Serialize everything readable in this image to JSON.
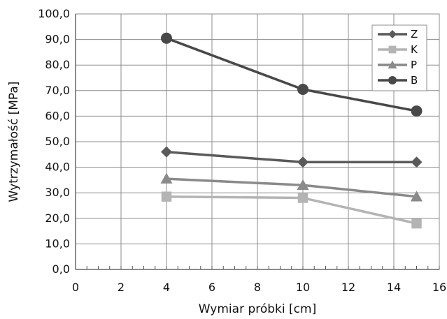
{
  "chart_data": {
    "type": "line",
    "title": "",
    "xlabel": "Wymiar próbki [cm]",
    "ylabel": "Wytrzymałość [MPa]",
    "xlim": [
      0,
      16
    ],
    "ylim": [
      0,
      100
    ],
    "x_ticks": [
      "0",
      "2",
      "4",
      "6",
      "8",
      "10",
      "12",
      "14",
      "16"
    ],
    "y_ticks": [
      "0,0",
      "10,0",
      "20,0",
      "30,0",
      "40,0",
      "50,0",
      "60,0",
      "70,0",
      "80,0",
      "90,0",
      "100,0"
    ],
    "grid": true,
    "legend_position": "top-right",
    "series": [
      {
        "name": "Z",
        "marker": "diamond",
        "color": "#5a5a5a",
        "x": [
          4,
          10,
          15
        ],
        "y": [
          46.0,
          42.0,
          42.0
        ]
      },
      {
        "name": "K",
        "marker": "square",
        "color": "#b4b4b4",
        "x": [
          4,
          10,
          15
        ],
        "y": [
          28.5,
          28.0,
          18.0
        ]
      },
      {
        "name": "P",
        "marker": "triangle",
        "color": "#8a8a8a",
        "x": [
          4,
          10,
          15
        ],
        "y": [
          35.5,
          33.0,
          28.5
        ]
      },
      {
        "name": "B",
        "marker": "circle",
        "color": "#484848",
        "x": [
          4,
          10,
          15
        ],
        "y": [
          90.5,
          70.5,
          62.0
        ]
      }
    ]
  }
}
